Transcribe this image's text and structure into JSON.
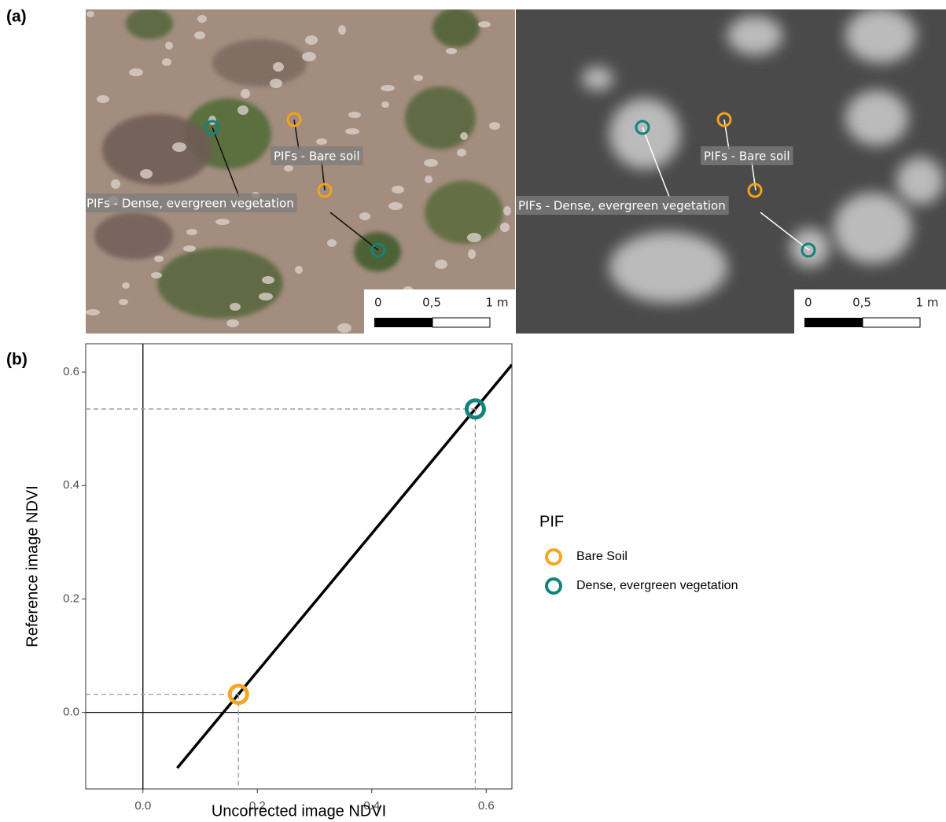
{
  "panel_a": {
    "label": "(a)",
    "photos": [
      {
        "annotations": [
          "PIFs - Bare soil",
          "PIFs - Dense, evergreen vegetation"
        ],
        "scale_labels": [
          "0",
          "0,5",
          "1 m"
        ]
      },
      {
        "annotations": [
          "PIFs - Bare soil",
          "PIFs - Dense, evergreen vegetation"
        ],
        "scale_labels": [
          "0",
          "0,5",
          "1 m"
        ]
      }
    ]
  },
  "panel_b_label": "(b)",
  "chart_data": {
    "type": "scatter",
    "x_label": "Uncorrected image NDVI",
    "y_label": "Reference image NDVI",
    "xlim": [
      -0.1,
      0.645
    ],
    "ylim": [
      -0.135,
      0.65
    ],
    "xticks": [
      {
        "value": 0,
        "label": "0.0"
      },
      {
        "value": 0.2,
        "label": "0.2"
      },
      {
        "value": 0.4,
        "label": "0.4"
      },
      {
        "value": 0.6,
        "label": "0.6"
      }
    ],
    "yticks": [
      {
        "value": 0,
        "label": "0.0"
      },
      {
        "value": 0.2,
        "label": "0.2"
      },
      {
        "value": 0.4,
        "label": "0.4"
      },
      {
        "value": 0.6,
        "label": "0.6"
      }
    ],
    "legend_title": "PIF",
    "series": [
      {
        "name": "Bare Soil",
        "color": "#f5a623",
        "x": [
          0.167
        ],
        "values": [
          0.032
        ]
      },
      {
        "name": "Dense, evergreen vegetation",
        "color": "#13837c",
        "x": [
          0.581
        ],
        "values": [
          0.535
        ]
      }
    ],
    "fit_line": {
      "x": [
        0.06,
        0.645
      ],
      "values": [
        -0.098,
        0.613
      ]
    }
  }
}
